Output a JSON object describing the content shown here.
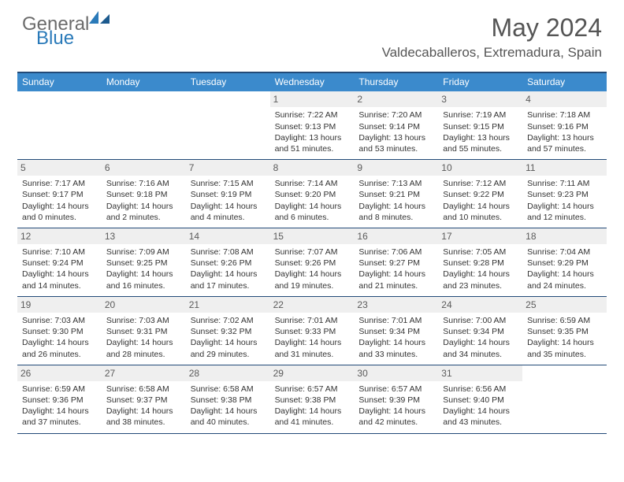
{
  "logo": {
    "text1": "General",
    "text2": "Blue"
  },
  "title": "May 2024",
  "location": "Valdecaballeros, Extremadura, Spain",
  "weekdays": [
    "Sunday",
    "Monday",
    "Tuesday",
    "Wednesday",
    "Thursday",
    "Friday",
    "Saturday"
  ],
  "colors": {
    "header_bar": "#3b8acc",
    "border": "#224a78",
    "daynum_bg": "#efefef",
    "text": "#333333",
    "logo_gray": "#6b6b6b",
    "logo_blue": "#2a7ab9"
  },
  "weeks": [
    [
      {
        "empty": true
      },
      {
        "empty": true
      },
      {
        "empty": true
      },
      {
        "num": "1",
        "sunrise": "Sunrise: 7:22 AM",
        "sunset": "Sunset: 9:13 PM",
        "daylight": "Daylight: 13 hours and 51 minutes."
      },
      {
        "num": "2",
        "sunrise": "Sunrise: 7:20 AM",
        "sunset": "Sunset: 9:14 PM",
        "daylight": "Daylight: 13 hours and 53 minutes."
      },
      {
        "num": "3",
        "sunrise": "Sunrise: 7:19 AM",
        "sunset": "Sunset: 9:15 PM",
        "daylight": "Daylight: 13 hours and 55 minutes."
      },
      {
        "num": "4",
        "sunrise": "Sunrise: 7:18 AM",
        "sunset": "Sunset: 9:16 PM",
        "daylight": "Daylight: 13 hours and 57 minutes."
      }
    ],
    [
      {
        "num": "5",
        "sunrise": "Sunrise: 7:17 AM",
        "sunset": "Sunset: 9:17 PM",
        "daylight": "Daylight: 14 hours and 0 minutes."
      },
      {
        "num": "6",
        "sunrise": "Sunrise: 7:16 AM",
        "sunset": "Sunset: 9:18 PM",
        "daylight": "Daylight: 14 hours and 2 minutes."
      },
      {
        "num": "7",
        "sunrise": "Sunrise: 7:15 AM",
        "sunset": "Sunset: 9:19 PM",
        "daylight": "Daylight: 14 hours and 4 minutes."
      },
      {
        "num": "8",
        "sunrise": "Sunrise: 7:14 AM",
        "sunset": "Sunset: 9:20 PM",
        "daylight": "Daylight: 14 hours and 6 minutes."
      },
      {
        "num": "9",
        "sunrise": "Sunrise: 7:13 AM",
        "sunset": "Sunset: 9:21 PM",
        "daylight": "Daylight: 14 hours and 8 minutes."
      },
      {
        "num": "10",
        "sunrise": "Sunrise: 7:12 AM",
        "sunset": "Sunset: 9:22 PM",
        "daylight": "Daylight: 14 hours and 10 minutes."
      },
      {
        "num": "11",
        "sunrise": "Sunrise: 7:11 AM",
        "sunset": "Sunset: 9:23 PM",
        "daylight": "Daylight: 14 hours and 12 minutes."
      }
    ],
    [
      {
        "num": "12",
        "sunrise": "Sunrise: 7:10 AM",
        "sunset": "Sunset: 9:24 PM",
        "daylight": "Daylight: 14 hours and 14 minutes."
      },
      {
        "num": "13",
        "sunrise": "Sunrise: 7:09 AM",
        "sunset": "Sunset: 9:25 PM",
        "daylight": "Daylight: 14 hours and 16 minutes."
      },
      {
        "num": "14",
        "sunrise": "Sunrise: 7:08 AM",
        "sunset": "Sunset: 9:26 PM",
        "daylight": "Daylight: 14 hours and 17 minutes."
      },
      {
        "num": "15",
        "sunrise": "Sunrise: 7:07 AM",
        "sunset": "Sunset: 9:26 PM",
        "daylight": "Daylight: 14 hours and 19 minutes."
      },
      {
        "num": "16",
        "sunrise": "Sunrise: 7:06 AM",
        "sunset": "Sunset: 9:27 PM",
        "daylight": "Daylight: 14 hours and 21 minutes."
      },
      {
        "num": "17",
        "sunrise": "Sunrise: 7:05 AM",
        "sunset": "Sunset: 9:28 PM",
        "daylight": "Daylight: 14 hours and 23 minutes."
      },
      {
        "num": "18",
        "sunrise": "Sunrise: 7:04 AM",
        "sunset": "Sunset: 9:29 PM",
        "daylight": "Daylight: 14 hours and 24 minutes."
      }
    ],
    [
      {
        "num": "19",
        "sunrise": "Sunrise: 7:03 AM",
        "sunset": "Sunset: 9:30 PM",
        "daylight": "Daylight: 14 hours and 26 minutes."
      },
      {
        "num": "20",
        "sunrise": "Sunrise: 7:03 AM",
        "sunset": "Sunset: 9:31 PM",
        "daylight": "Daylight: 14 hours and 28 minutes."
      },
      {
        "num": "21",
        "sunrise": "Sunrise: 7:02 AM",
        "sunset": "Sunset: 9:32 PM",
        "daylight": "Daylight: 14 hours and 29 minutes."
      },
      {
        "num": "22",
        "sunrise": "Sunrise: 7:01 AM",
        "sunset": "Sunset: 9:33 PM",
        "daylight": "Daylight: 14 hours and 31 minutes."
      },
      {
        "num": "23",
        "sunrise": "Sunrise: 7:01 AM",
        "sunset": "Sunset: 9:34 PM",
        "daylight": "Daylight: 14 hours and 33 minutes."
      },
      {
        "num": "24",
        "sunrise": "Sunrise: 7:00 AM",
        "sunset": "Sunset: 9:34 PM",
        "daylight": "Daylight: 14 hours and 34 minutes."
      },
      {
        "num": "25",
        "sunrise": "Sunrise: 6:59 AM",
        "sunset": "Sunset: 9:35 PM",
        "daylight": "Daylight: 14 hours and 35 minutes."
      }
    ],
    [
      {
        "num": "26",
        "sunrise": "Sunrise: 6:59 AM",
        "sunset": "Sunset: 9:36 PM",
        "daylight": "Daylight: 14 hours and 37 minutes."
      },
      {
        "num": "27",
        "sunrise": "Sunrise: 6:58 AM",
        "sunset": "Sunset: 9:37 PM",
        "daylight": "Daylight: 14 hours and 38 minutes."
      },
      {
        "num": "28",
        "sunrise": "Sunrise: 6:58 AM",
        "sunset": "Sunset: 9:38 PM",
        "daylight": "Daylight: 14 hours and 40 minutes."
      },
      {
        "num": "29",
        "sunrise": "Sunrise: 6:57 AM",
        "sunset": "Sunset: 9:38 PM",
        "daylight": "Daylight: 14 hours and 41 minutes."
      },
      {
        "num": "30",
        "sunrise": "Sunrise: 6:57 AM",
        "sunset": "Sunset: 9:39 PM",
        "daylight": "Daylight: 14 hours and 42 minutes."
      },
      {
        "num": "31",
        "sunrise": "Sunrise: 6:56 AM",
        "sunset": "Sunset: 9:40 PM",
        "daylight": "Daylight: 14 hours and 43 minutes."
      },
      {
        "empty": true
      }
    ]
  ]
}
